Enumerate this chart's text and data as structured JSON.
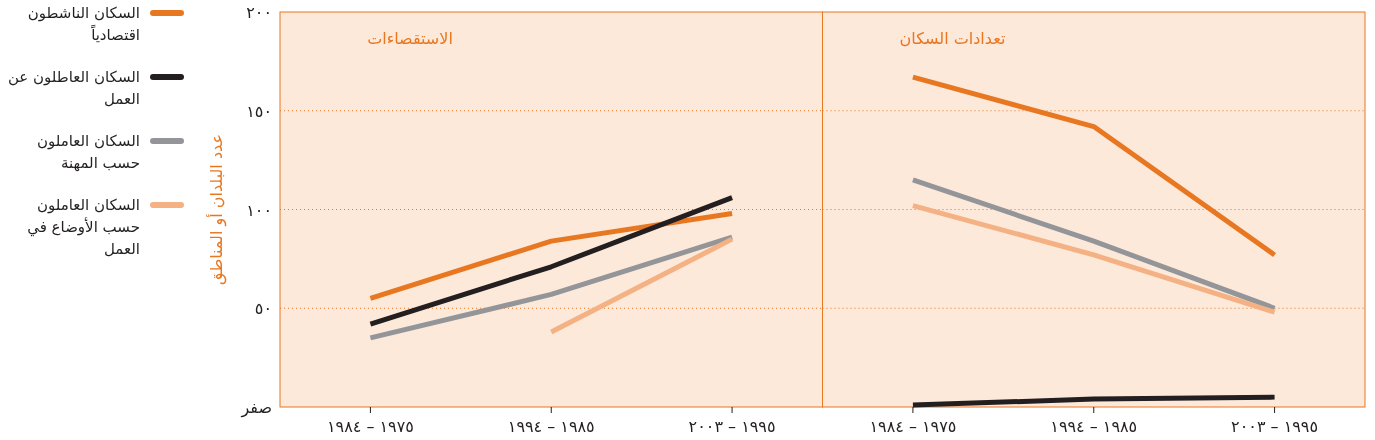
{
  "chart_data": [
    {
      "type": "line",
      "title": "الاستقصاءات",
      "ylabel": "عدد البلدان أو المناطق",
      "categories": [
        "١٩٧٥ – ١٩٨٤",
        "١٩٨٥ – ١٩٩٤",
        "١٩٩٥ – ٢٠٠٣"
      ],
      "ylim": [
        0,
        200
      ],
      "yticks": [
        {
          "value": 0,
          "label": "صفر"
        },
        {
          "value": 50,
          "label": "٥٠"
        },
        {
          "value": 100,
          "label": "١٠٠"
        },
        {
          "value": 150,
          "label": "١٥٠"
        },
        {
          "value": 200,
          "label": "٢٠٠"
        }
      ],
      "grid": "y",
      "legend": "left",
      "series": [
        {
          "name": "السكان الناشطون اقتصادياً",
          "color": "#e87722",
          "values": [
            55,
            84,
            98
          ]
        },
        {
          "name": "السكان العاطلون عن العمل",
          "color": "#231f20",
          "values": [
            42,
            71,
            106
          ]
        },
        {
          "name": "السكان العاملون حسب المهنة",
          "color": "#939598",
          "values": [
            35,
            57,
            86
          ]
        },
        {
          "name": "السكان العاملون حسب الأوضاع في العمل",
          "color": "#f4b183",
          "values": [
            null,
            38,
            85
          ]
        }
      ]
    },
    {
      "type": "line",
      "title": "تعدادات السكان",
      "categories": [
        "١٩٧٥ – ١٩٨٤",
        "١٩٨٥ – ١٩٩٤",
        "١٩٩٥ – ٢٠٠٣"
      ],
      "ylim": [
        0,
        200
      ],
      "yticks": [
        {
          "value": 0,
          "label": null
        },
        {
          "value": 50,
          "label": null
        },
        {
          "value": 100,
          "label": null
        },
        {
          "value": 150,
          "label": null
        },
        {
          "value": 200,
          "label": null
        }
      ],
      "grid": "y",
      "tick_labels": "x",
      "series": [
        {
          "color": "#e87722",
          "values": [
            167,
            142,
            77
          ]
        },
        {
          "color": "#231f20",
          "values": [
            1,
            4,
            5
          ]
        },
        {
          "color": "#939598",
          "values": [
            115,
            84,
            50
          ]
        },
        {
          "color": "#f4b183",
          "values": [
            102,
            77,
            48
          ]
        }
      ]
    }
  ]
}
